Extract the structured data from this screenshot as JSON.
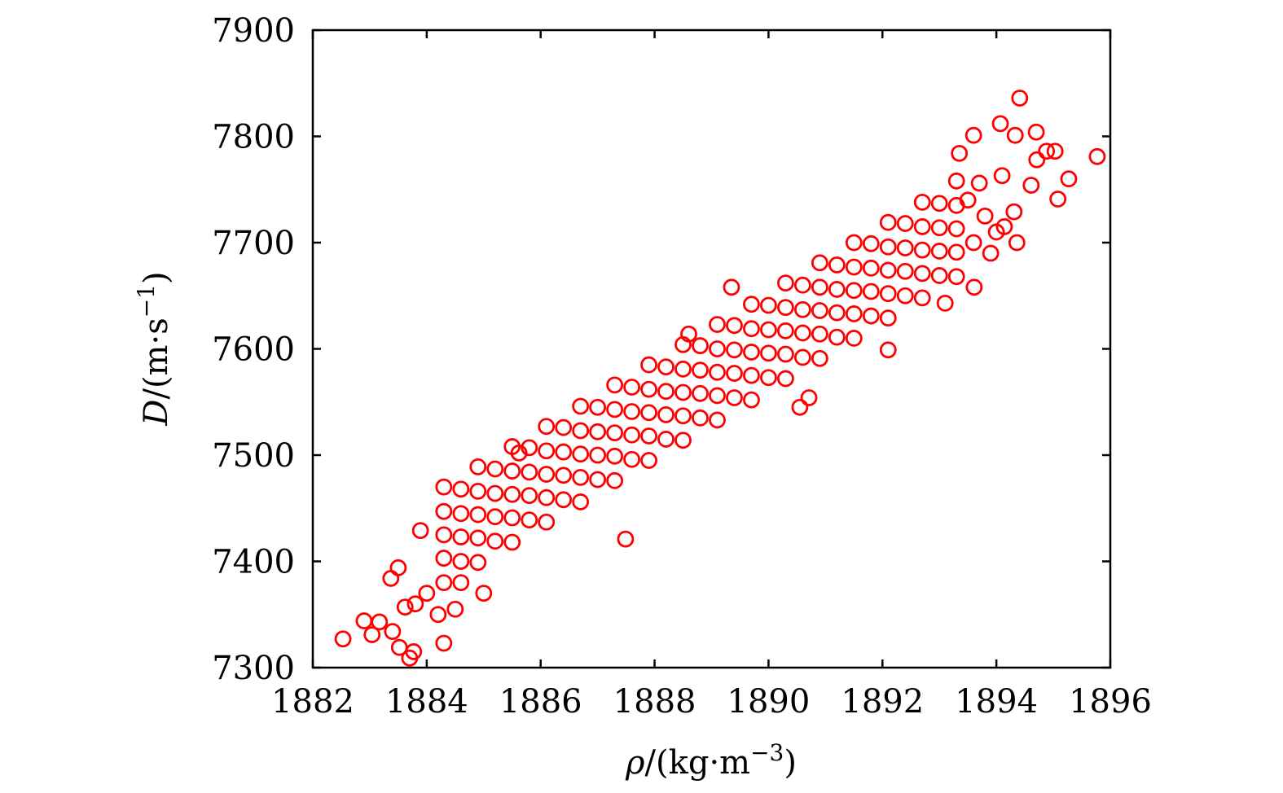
{
  "chart_data": {
    "type": "scatter",
    "title": "",
    "xlabel": {
      "symbol": "ρ",
      "unit_open": "/(kg·m",
      "exponent": "−3",
      "unit_close": ")"
    },
    "ylabel": {
      "symbol": "D",
      "unit_open": "/(m·s",
      "exponent": "−1",
      "unit_close": ")"
    },
    "xlim": [
      1882,
      1896
    ],
    "ylim": [
      7300,
      7900
    ],
    "xticks": [
      "1882",
      "1884",
      "1886",
      "1888",
      "1890",
      "1892",
      "1894",
      "1896"
    ],
    "yticks": [
      "7300",
      "7400",
      "7500",
      "7600",
      "7700",
      "7800",
      "7900"
    ],
    "grid": false,
    "legend": "none",
    "marker": "open-circle",
    "color": "#ff0000",
    "points": [
      [
        1884.3,
        7380
      ],
      [
        1884.3,
        7403
      ],
      [
        1884.3,
        7425
      ],
      [
        1884.3,
        7447
      ],
      [
        1884.3,
        7470
      ],
      [
        1884.6,
        7400
      ],
      [
        1884.6,
        7423
      ],
      [
        1884.6,
        7445
      ],
      [
        1884.6,
        7468
      ],
      [
        1884.9,
        7399
      ],
      [
        1884.9,
        7422
      ],
      [
        1884.9,
        7444
      ],
      [
        1884.9,
        7466
      ],
      [
        1884.9,
        7489
      ],
      [
        1885.2,
        7419
      ],
      [
        1885.2,
        7442
      ],
      [
        1885.2,
        7464
      ],
      [
        1885.2,
        7487
      ],
      [
        1885.5,
        7418
      ],
      [
        1885.5,
        7441
      ],
      [
        1885.5,
        7463
      ],
      [
        1885.5,
        7485
      ],
      [
        1885.5,
        7508
      ],
      [
        1885.8,
        7439
      ],
      [
        1885.8,
        7462
      ],
      [
        1885.8,
        7484
      ],
      [
        1885.8,
        7507
      ],
      [
        1886.1,
        7437
      ],
      [
        1886.1,
        7460
      ],
      [
        1886.1,
        7482
      ],
      [
        1886.1,
        7504
      ],
      [
        1886.1,
        7527
      ],
      [
        1886.4,
        7458
      ],
      [
        1886.4,
        7481
      ],
      [
        1886.4,
        7503
      ],
      [
        1886.4,
        7526
      ],
      [
        1886.7,
        7456
      ],
      [
        1886.7,
        7479
      ],
      [
        1886.7,
        7501
      ],
      [
        1886.7,
        7523
      ],
      [
        1886.7,
        7546
      ],
      [
        1887.0,
        7477
      ],
      [
        1887.0,
        7500
      ],
      [
        1887.0,
        7522
      ],
      [
        1887.0,
        7545
      ],
      [
        1887.3,
        7476
      ],
      [
        1887.3,
        7499
      ],
      [
        1887.3,
        7521
      ],
      [
        1887.3,
        7543
      ],
      [
        1887.3,
        7566
      ],
      [
        1887.6,
        7496
      ],
      [
        1887.6,
        7519
      ],
      [
        1887.6,
        7541
      ],
      [
        1887.6,
        7564
      ],
      [
        1887.9,
        7495
      ],
      [
        1887.9,
        7518
      ],
      [
        1887.9,
        7540
      ],
      [
        1887.9,
        7562
      ],
      [
        1887.9,
        7585
      ],
      [
        1888.2,
        7515
      ],
      [
        1888.2,
        7538
      ],
      [
        1888.2,
        7560
      ],
      [
        1888.2,
        7583
      ],
      [
        1888.5,
        7514
      ],
      [
        1888.5,
        7537
      ],
      [
        1888.5,
        7559
      ],
      [
        1888.5,
        7581
      ],
      [
        1888.5,
        7604
      ],
      [
        1888.8,
        7535
      ],
      [
        1888.8,
        7558
      ],
      [
        1888.8,
        7580
      ],
      [
        1888.8,
        7603
      ],
      [
        1889.1,
        7533
      ],
      [
        1889.1,
        7556
      ],
      [
        1889.1,
        7578
      ],
      [
        1889.1,
        7600
      ],
      [
        1889.1,
        7623
      ],
      [
        1889.4,
        7554
      ],
      [
        1889.4,
        7577
      ],
      [
        1889.4,
        7599
      ],
      [
        1889.4,
        7622
      ],
      [
        1889.7,
        7552
      ],
      [
        1889.7,
        7575
      ],
      [
        1889.7,
        7597
      ],
      [
        1889.7,
        7619
      ],
      [
        1889.7,
        7642
      ],
      [
        1890.0,
        7573
      ],
      [
        1890.0,
        7596
      ],
      [
        1890.0,
        7618
      ],
      [
        1890.0,
        7641
      ],
      [
        1890.3,
        7572
      ],
      [
        1890.3,
        7595
      ],
      [
        1890.3,
        7617
      ],
      [
        1890.3,
        7639
      ],
      [
        1890.3,
        7662
      ],
      [
        1890.6,
        7592
      ],
      [
        1890.6,
        7615
      ],
      [
        1890.6,
        7637
      ],
      [
        1890.6,
        7660
      ],
      [
        1890.9,
        7591
      ],
      [
        1890.9,
        7614
      ],
      [
        1890.9,
        7636
      ],
      [
        1890.9,
        7658
      ],
      [
        1890.9,
        7681
      ],
      [
        1891.2,
        7611
      ],
      [
        1891.2,
        7634
      ],
      [
        1891.2,
        7656
      ],
      [
        1891.2,
        7679
      ],
      [
        1891.5,
        7610
      ],
      [
        1891.5,
        7633
      ],
      [
        1891.5,
        7655
      ],
      [
        1891.5,
        7677
      ],
      [
        1891.5,
        7700
      ],
      [
        1891.8,
        7631
      ],
      [
        1891.8,
        7654
      ],
      [
        1891.8,
        7676
      ],
      [
        1891.8,
        7699
      ],
      [
        1892.1,
        7629
      ],
      [
        1892.1,
        7652
      ],
      [
        1892.1,
        7674
      ],
      [
        1892.1,
        7696
      ],
      [
        1892.1,
        7719
      ],
      [
        1892.4,
        7650
      ],
      [
        1892.4,
        7673
      ],
      [
        1892.4,
        7695
      ],
      [
        1892.4,
        7718
      ],
      [
        1892.7,
        7648
      ],
      [
        1892.7,
        7671
      ],
      [
        1892.7,
        7693
      ],
      [
        1892.7,
        7715
      ],
      [
        1892.7,
        7738
      ],
      [
        1893.0,
        7669
      ],
      [
        1893.0,
        7692
      ],
      [
        1893.0,
        7714
      ],
      [
        1893.0,
        7737
      ],
      [
        1893.3,
        7668
      ],
      [
        1893.3,
        7691
      ],
      [
        1893.3,
        7713
      ],
      [
        1893.3,
        7735
      ],
      [
        1893.3,
        7758
      ],
      [
        1882.53,
        7327
      ],
      [
        1882.9,
        7344
      ],
      [
        1883.04,
        7331
      ],
      [
        1883.17,
        7343
      ],
      [
        1883.4,
        7334
      ],
      [
        1883.52,
        7319
      ],
      [
        1883.7,
        7309
      ],
      [
        1883.77,
        7315
      ],
      [
        1883.89,
        7429
      ],
      [
        1884.3,
        7323
      ],
      [
        1883.37,
        7384
      ],
      [
        1883.5,
        7394
      ],
      [
        1883.62,
        7357
      ],
      [
        1885.62,
        7502
      ],
      [
        1887.49,
        7421
      ],
      [
        1884.0,
        7370
      ],
      [
        1883.8,
        7360
      ],
      [
        1884.2,
        7350
      ],
      [
        1884.5,
        7355
      ],
      [
        1884.6,
        7380
      ],
      [
        1885.0,
        7370
      ],
      [
        1894.41,
        7836
      ],
      [
        1894.7,
        7804
      ],
      [
        1894.07,
        7812
      ],
      [
        1894.33,
        7801
      ],
      [
        1894.88,
        7786
      ],
      [
        1895.03,
        7786
      ],
      [
        1894.71,
        7778
      ],
      [
        1895.77,
        7781
      ],
      [
        1895.27,
        7760
      ],
      [
        1894.61,
        7754
      ],
      [
        1895.08,
        7741
      ],
      [
        1894.31,
        7729
      ],
      [
        1894.36,
        7700
      ],
      [
        1894.14,
        7715
      ],
      [
        1893.61,
        7658
      ],
      [
        1893.1,
        7643
      ],
      [
        1893.35,
        7784
      ],
      [
        1894.1,
        7763
      ],
      [
        1893.7,
        7756
      ],
      [
        1893.6,
        7801
      ],
      [
        1893.6,
        7700
      ],
      [
        1893.8,
        7725
      ],
      [
        1893.9,
        7690
      ],
      [
        1893.5,
        7740
      ],
      [
        1894.0,
        7710
      ],
      [
        1890.55,
        7545
      ],
      [
        1890.71,
        7554
      ],
      [
        1892.1,
        7599
      ],
      [
        1889.35,
        7658
      ],
      [
        1888.6,
        7614
      ]
    ]
  }
}
